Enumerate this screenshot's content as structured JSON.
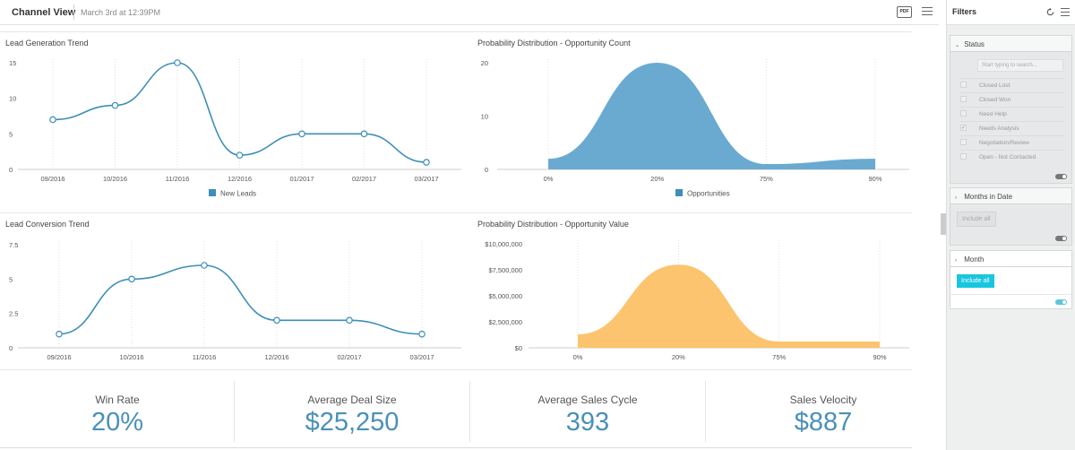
{
  "header": {
    "title": "Channel View",
    "date": "March 3rd at 12:39PM",
    "pdf_label": "PDF"
  },
  "colors": {
    "line": "#3d8eb9",
    "area_blue": "#6aaad1",
    "area_orange": "#fcc46e",
    "accent": "#18c6e0",
    "kpi": "#4a90b8"
  },
  "charts": {
    "lead_gen": {
      "title": "Lead Generation Trend",
      "legend": "New Leads",
      "chart_data": {
        "type": "line",
        "x": [
          "09/2016",
          "10/2016",
          "11/2016",
          "12/2016",
          "01/2017",
          "02/2017",
          "03/2017"
        ],
        "y_ticks": [
          "15",
          "10",
          "5",
          "0"
        ],
        "ylim": [
          0,
          15
        ],
        "series": [
          {
            "name": "New Leads",
            "values": [
              7,
              9,
              15,
              2,
              5,
              5,
              1
            ]
          }
        ]
      }
    },
    "prob_count": {
      "title": "Probability Distribution - Opportunity Count",
      "legend": "Opportunities",
      "chart_data": {
        "type": "area",
        "x": [
          "0%",
          "20%",
          "75%",
          "90%"
        ],
        "y_ticks": [
          "20",
          "10",
          "0"
        ],
        "ylim": [
          0,
          20
        ],
        "series": [
          {
            "name": "Opportunities",
            "values": [
              2,
              20,
              1,
              2
            ]
          }
        ]
      }
    },
    "lead_conv": {
      "title": "Lead Conversion Trend",
      "chart_data": {
        "type": "line",
        "x": [
          "09/2016",
          "10/2016",
          "11/2016",
          "12/2016",
          "02/2017",
          "03/2017"
        ],
        "y_ticks": [
          "7.5",
          "5",
          "2.5",
          "0"
        ],
        "ylim": [
          0,
          7.5
        ],
        "series": [
          {
            "values": [
              1,
              5,
              6,
              2,
              2,
              1
            ]
          }
        ]
      }
    },
    "prob_value": {
      "title": "Probability Distribution - Opportunity Value",
      "chart_data": {
        "type": "area",
        "x": [
          "0%",
          "20%",
          "75%",
          "90%"
        ],
        "y_ticks": [
          "$10,000,000",
          "$7,500,000",
          "$5,000,000",
          "$2,500,000",
          "$0"
        ],
        "ylim": [
          0,
          10000000
        ],
        "series": [
          {
            "values": [
              1300000,
              8000000,
              600000,
              600000
            ]
          }
        ]
      }
    }
  },
  "kpis": [
    {
      "label": "Win Rate",
      "value": "20%"
    },
    {
      "label": "Average Deal Size",
      "value": "$25,250"
    },
    {
      "label": "Average Sales Cycle",
      "value": "393"
    },
    {
      "label": "Sales Velocity",
      "value": "$887"
    }
  ],
  "filters": {
    "title": "Filters",
    "status": {
      "label": "Status",
      "search_placeholder": "Start typing to search...",
      "options": [
        {
          "label": "Closed Lost",
          "checked": false
        },
        {
          "label": "Closed Won",
          "checked": false
        },
        {
          "label": "Need Help",
          "checked": false
        },
        {
          "label": "Needs Analysis",
          "checked": true
        },
        {
          "label": "Negotiation/Review",
          "checked": false
        },
        {
          "label": "Open - Not Contacted",
          "checked": false
        }
      ]
    },
    "months_in_date": {
      "label": "Months in Date",
      "button": "Include all"
    },
    "month": {
      "label": "Month",
      "button": "Include all"
    }
  }
}
